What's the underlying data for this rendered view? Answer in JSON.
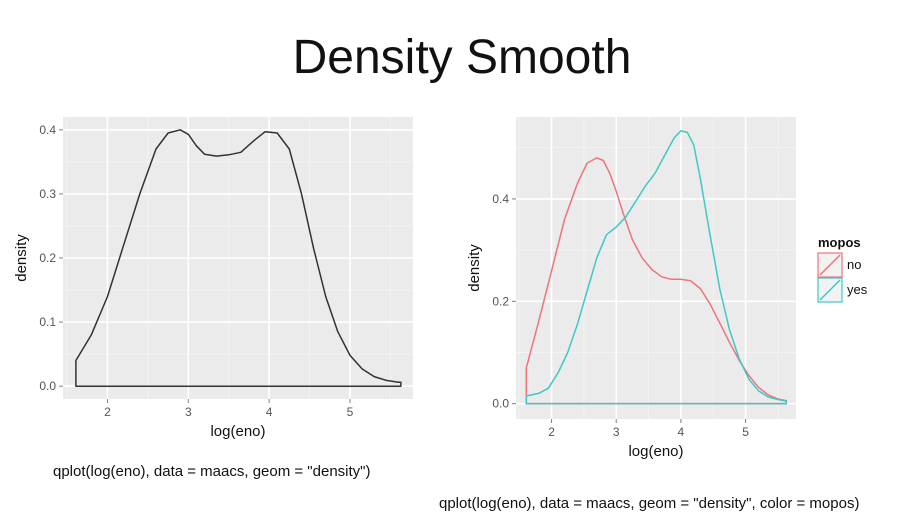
{
  "slide": {
    "title": "Density Smooth",
    "caption_left": "qplot(log(eno), data = maacs, geom = \"density\")",
    "caption_right": "qplot(log(eno), data = maacs, geom = \"density\", color = mopos)"
  },
  "colors": {
    "panel_bg": "#ebebeb",
    "grid": "#ffffff",
    "series_single": "#333333",
    "series_no": "#f0737a",
    "series_yes": "#3ec9c4",
    "axis_text": "#555555"
  },
  "chart_data": [
    {
      "type": "area",
      "title": "",
      "xlabel": "log(eno)",
      "ylabel": "density",
      "xlim": [
        1.45,
        5.78
      ],
      "ylim": [
        -0.02,
        0.42
      ],
      "x_ticks": [
        2,
        3,
        4,
        5
      ],
      "y_ticks": [
        0.0,
        0.1,
        0.2,
        0.3,
        0.4
      ],
      "y_tick_labels": [
        "0.0",
        "0.1",
        "0.2",
        "0.3",
        "0.4"
      ],
      "grid": true,
      "series": [
        {
          "x": [
            1.61,
            1.61,
            1.8,
            2.0,
            2.2,
            2.4,
            2.6,
            2.75,
            2.9,
            3.0,
            3.1,
            3.2,
            3.35,
            3.5,
            3.65,
            3.8,
            3.95,
            4.1,
            4.25,
            4.4,
            4.55,
            4.7,
            4.85,
            5.0,
            5.15,
            5.3,
            5.45,
            5.6,
            5.63,
            5.63,
            1.61
          ],
          "y": [
            0.0,
            0.04,
            0.08,
            0.14,
            0.22,
            0.3,
            0.37,
            0.395,
            0.4,
            0.393,
            0.375,
            0.362,
            0.359,
            0.361,
            0.365,
            0.382,
            0.397,
            0.395,
            0.37,
            0.3,
            0.215,
            0.14,
            0.085,
            0.048,
            0.027,
            0.015,
            0.009,
            0.006,
            0.006,
            0.0,
            0.0
          ]
        }
      ]
    },
    {
      "type": "area",
      "title": "",
      "xlabel": "log(eno)",
      "ylabel": "density",
      "xlim": [
        1.45,
        5.78
      ],
      "ylim": [
        -0.03,
        0.56
      ],
      "x_ticks": [
        2,
        3,
        4,
        5
      ],
      "y_ticks": [
        0.0,
        0.2,
        0.4
      ],
      "y_tick_labels": [
        "0.0",
        "0.2",
        "0.4"
      ],
      "grid": true,
      "legend": {
        "title": "mopos",
        "position": "right",
        "entries": [
          "no",
          "yes"
        ]
      },
      "series": [
        {
          "name": "no",
          "x": [
            1.61,
            1.61,
            1.8,
            2.0,
            2.2,
            2.4,
            2.55,
            2.7,
            2.8,
            2.9,
            3.0,
            3.1,
            3.25,
            3.4,
            3.55,
            3.7,
            3.85,
            4.0,
            4.15,
            4.3,
            4.45,
            4.6,
            4.75,
            4.9,
            5.05,
            5.2,
            5.35,
            5.5,
            5.63,
            5.63,
            1.61
          ],
          "y": [
            0.0,
            0.07,
            0.16,
            0.26,
            0.36,
            0.43,
            0.47,
            0.48,
            0.475,
            0.45,
            0.415,
            0.375,
            0.32,
            0.285,
            0.262,
            0.248,
            0.243,
            0.243,
            0.24,
            0.225,
            0.195,
            0.158,
            0.12,
            0.085,
            0.055,
            0.032,
            0.017,
            0.009,
            0.006,
            0.0,
            0.0
          ]
        },
        {
          "name": "yes",
          "x": [
            1.61,
            1.61,
            1.8,
            1.95,
            2.1,
            2.25,
            2.4,
            2.55,
            2.7,
            2.85,
            3.0,
            3.15,
            3.3,
            3.45,
            3.6,
            3.75,
            3.9,
            4.0,
            4.1,
            4.2,
            4.3,
            4.45,
            4.6,
            4.75,
            4.9,
            5.05,
            5.2,
            5.35,
            5.5,
            5.63,
            5.63,
            1.61
          ],
          "y": [
            0.0,
            0.015,
            0.02,
            0.03,
            0.06,
            0.1,
            0.155,
            0.22,
            0.285,
            0.33,
            0.345,
            0.365,
            0.395,
            0.425,
            0.45,
            0.485,
            0.52,
            0.533,
            0.53,
            0.505,
            0.44,
            0.33,
            0.225,
            0.145,
            0.088,
            0.048,
            0.025,
            0.013,
            0.008,
            0.005,
            0.0,
            0.0
          ]
        }
      ]
    }
  ]
}
